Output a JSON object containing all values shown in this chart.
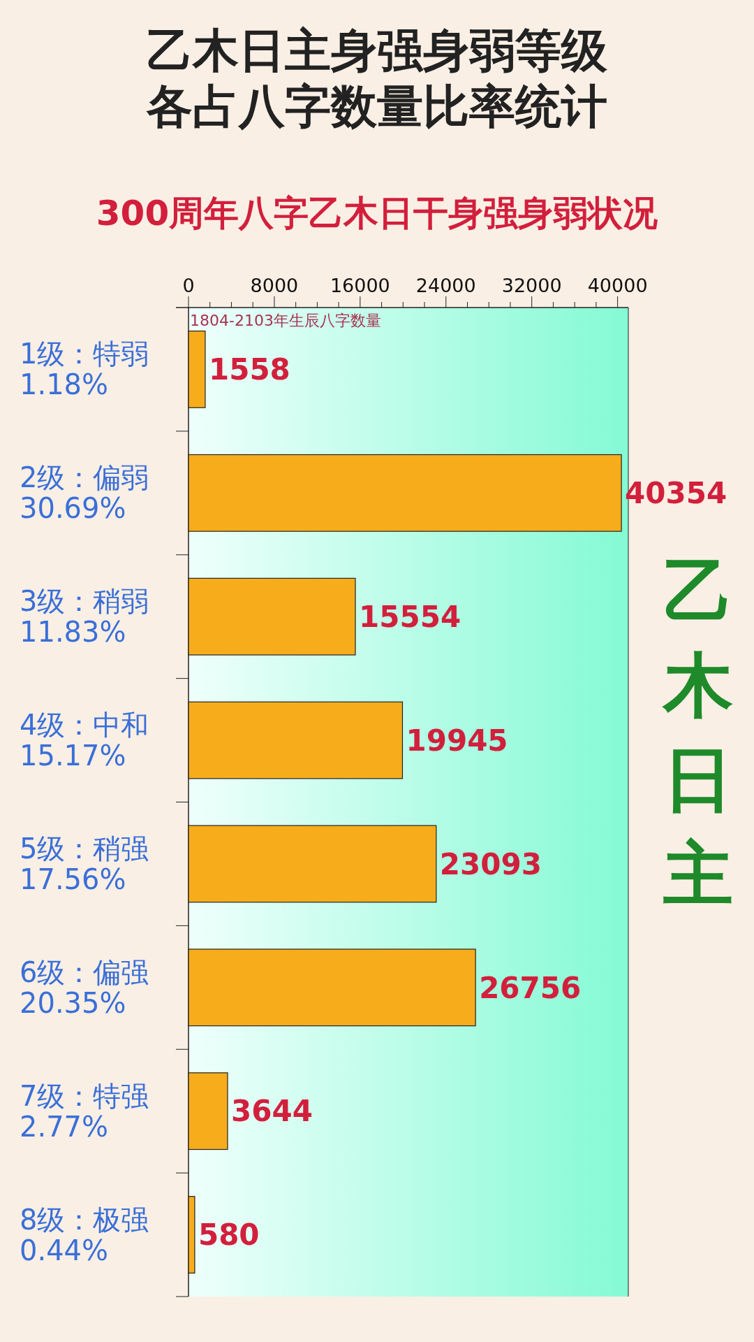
{
  "chart_data": {
    "type": "bar",
    "orientation": "horizontal",
    "title": "乙木日主身强身弱等级各占八字数量比率统计",
    "subtitle": "300周年八字乙木日干身强身弱状况",
    "xlabel": "1804-2103年生辰八字数量",
    "categories": [
      "1级：特弱\n1.18%",
      "2级：偏弱\n30.69%",
      "3级：稍弱\n11.83%",
      "4级：中和\n15.17%",
      "5级：稍强\n17.56%",
      "6级：偏强\n20.35%",
      "7级：特强\n2.77%",
      "8级：极强\n0.44%"
    ],
    "values": [
      1558,
      40354,
      15554,
      19945,
      23093,
      26756,
      3644,
      580
    ],
    "color": "#f7ad1b",
    "data_labels": true,
    "xlim": [
      0,
      41000
    ],
    "xticks": [
      0,
      {
        "value": 2000,
        "label": null
      },
      {
        "value": 4000,
        "label": null
      },
      {
        "value": 6000,
        "label": null
      },
      8000,
      {
        "value": 10000,
        "label": null
      },
      {
        "value": 12000,
        "label": null
      },
      {
        "value": 14000,
        "label": null
      },
      16000,
      {
        "value": 18000,
        "label": null
      },
      {
        "value": 20000,
        "label": null
      },
      {
        "value": 22000,
        "label": null
      },
      24000,
      {
        "value": 26000,
        "label": null
      },
      {
        "value": 28000,
        "label": null
      },
      {
        "value": 30000,
        "label": null
      },
      32000,
      {
        "value": 34000,
        "label": null
      },
      {
        "value": 36000,
        "label": null
      },
      {
        "value": 38000,
        "label": null
      },
      40000
    ],
    "annotations": [
      "乙木日主"
    ]
  }
}
